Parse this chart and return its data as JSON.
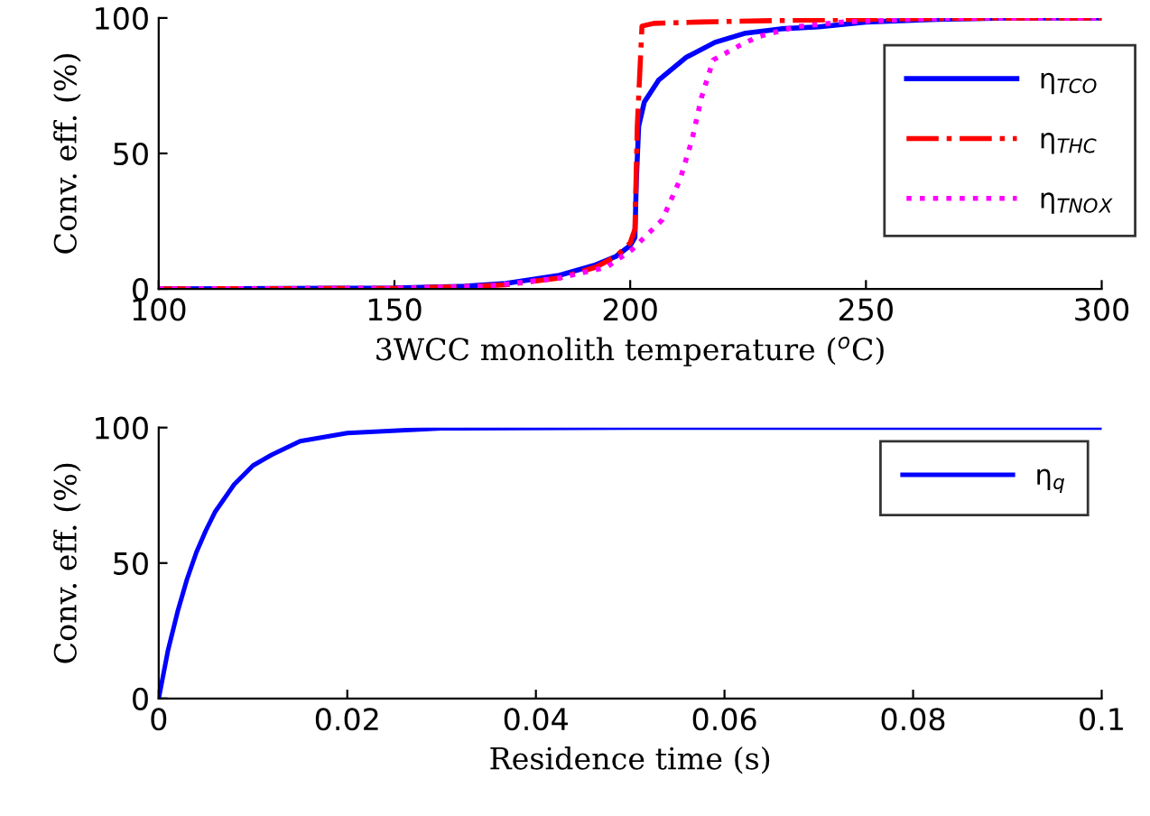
{
  "chart_data": [
    {
      "type": "line",
      "xlabel": "3WCC monolith temperature ($^{o}$C)",
      "ylabel": "Conv. eff. (%)",
      "xlim": [
        100,
        300
      ],
      "ylim": [
        0,
        100
      ],
      "xticks": [
        100,
        150,
        200,
        250,
        300
      ],
      "yticks": [
        0,
        50,
        100
      ],
      "grid": false,
      "legend": "top right",
      "marker": "none",
      "series": [
        {
          "name": "η$_{TCO}$",
          "color": "#0000ff",
          "line_style": "solid",
          "x": [
            100,
            150,
            165,
            173.6,
            185,
            192.7,
            197,
            200,
            201,
            201.3,
            201.8,
            203,
            206,
            211.9,
            218,
            224.5,
            232,
            240,
            250,
            265,
            280,
            300
          ],
          "values": [
            0,
            0.3,
            1,
            2,
            5,
            8.9,
            12,
            16,
            19,
            40,
            60,
            69,
            77,
            85.5,
            91,
            94.4,
            96,
            96.7,
            98.5,
            99.5,
            100,
            100
          ]
        },
        {
          "name": "η$_{THC}$",
          "color": "#ff0000",
          "line_style": "dashdot",
          "x": [
            100,
            150,
            165,
            173.6,
            185,
            192.7,
            197,
            200,
            201,
            201.5,
            202.5,
            205,
            215,
            230,
            250,
            280,
            300
          ],
          "values": [
            0,
            0.2,
            0.8,
            1.5,
            4,
            8,
            12,
            17,
            22,
            60,
            97,
            98,
            98.5,
            99,
            99.5,
            100,
            100
          ]
        },
        {
          "name": "η$_{TNO}$$_{X}$",
          "color": "#ff00ff",
          "line_style": "dotted",
          "x": [
            100,
            150,
            170,
            185,
            195,
            200.4,
            206.8,
            210.6,
            213.1,
            215.1,
            217.6,
            223.4,
            227,
            235,
            245,
            260,
            270,
            300
          ],
          "values": [
            0,
            0.2,
            1,
            4,
            8,
            14.5,
            25.5,
            40.5,
            55,
            70.5,
            84.5,
            90,
            93,
            96.7,
            98.5,
            99.5,
            100,
            100
          ]
        }
      ]
    },
    {
      "type": "line",
      "xlabel": "Residence time (s)",
      "ylabel": "Conv. eff. (%)",
      "xlim": [
        0,
        0.1
      ],
      "ylim": [
        0,
        100
      ],
      "xticks": [
        0,
        0.02,
        0.04,
        0.06,
        0.08,
        0.1
      ],
      "yticks": [
        0,
        50,
        100
      ],
      "grid": false,
      "legend": "top right",
      "marker": "none",
      "series": [
        {
          "name": "η$_{q}$",
          "color": "#0000ff",
          "line_style": "solid",
          "x": [
            0,
            0.001,
            0.002,
            0.003,
            0.004,
            0.005,
            0.006,
            0.008,
            0.01,
            0.012,
            0.015,
            0.02,
            0.03,
            0.05,
            0.1
          ],
          "values": [
            0,
            18,
            32,
            44,
            54,
            62,
            69,
            79,
            86,
            90,
            95,
            98,
            99.7,
            100,
            100
          ]
        }
      ]
    }
  ]
}
